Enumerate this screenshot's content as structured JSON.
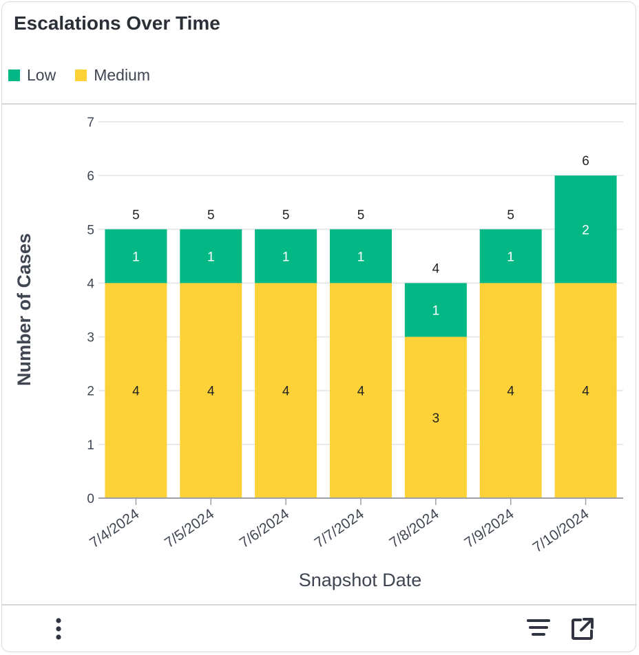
{
  "widget": {
    "title": "Escalations Over Time"
  },
  "colors": {
    "low": "#04b885",
    "medium": "#fdd238",
    "grid": "#e6e8eb",
    "text": "#3f4652"
  },
  "legend": {
    "items": [
      {
        "label": "Low",
        "color": "#04b885"
      },
      {
        "label": "Medium",
        "color": "#fdd238"
      }
    ]
  },
  "chart_data": {
    "type": "bar",
    "stacked": true,
    "categories": [
      "7/4/2024",
      "7/5/2024",
      "7/6/2024",
      "7/7/2024",
      "7/8/2024",
      "7/9/2024",
      "7/10/2024"
    ],
    "series": [
      {
        "name": "Medium",
        "values": [
          4,
          4,
          4,
          4,
          3,
          4,
          4
        ],
        "color": "#fdd238"
      },
      {
        "name": "Low",
        "values": [
          1,
          1,
          1,
          1,
          1,
          1,
          2
        ],
        "color": "#04b885"
      }
    ],
    "totals": [
      5,
      5,
      5,
      5,
      4,
      5,
      6
    ],
    "xlabel": "Snapshot Date",
    "ylabel": "Number of Cases",
    "ylim": [
      0,
      7
    ],
    "yticks": [
      0,
      1,
      2,
      3,
      4,
      5,
      6,
      7
    ],
    "grid": true,
    "legend_position": "top-left"
  },
  "footer": {
    "icons": [
      "more-vertical-icon",
      "filter-lines-icon",
      "open-external-icon"
    ]
  }
}
